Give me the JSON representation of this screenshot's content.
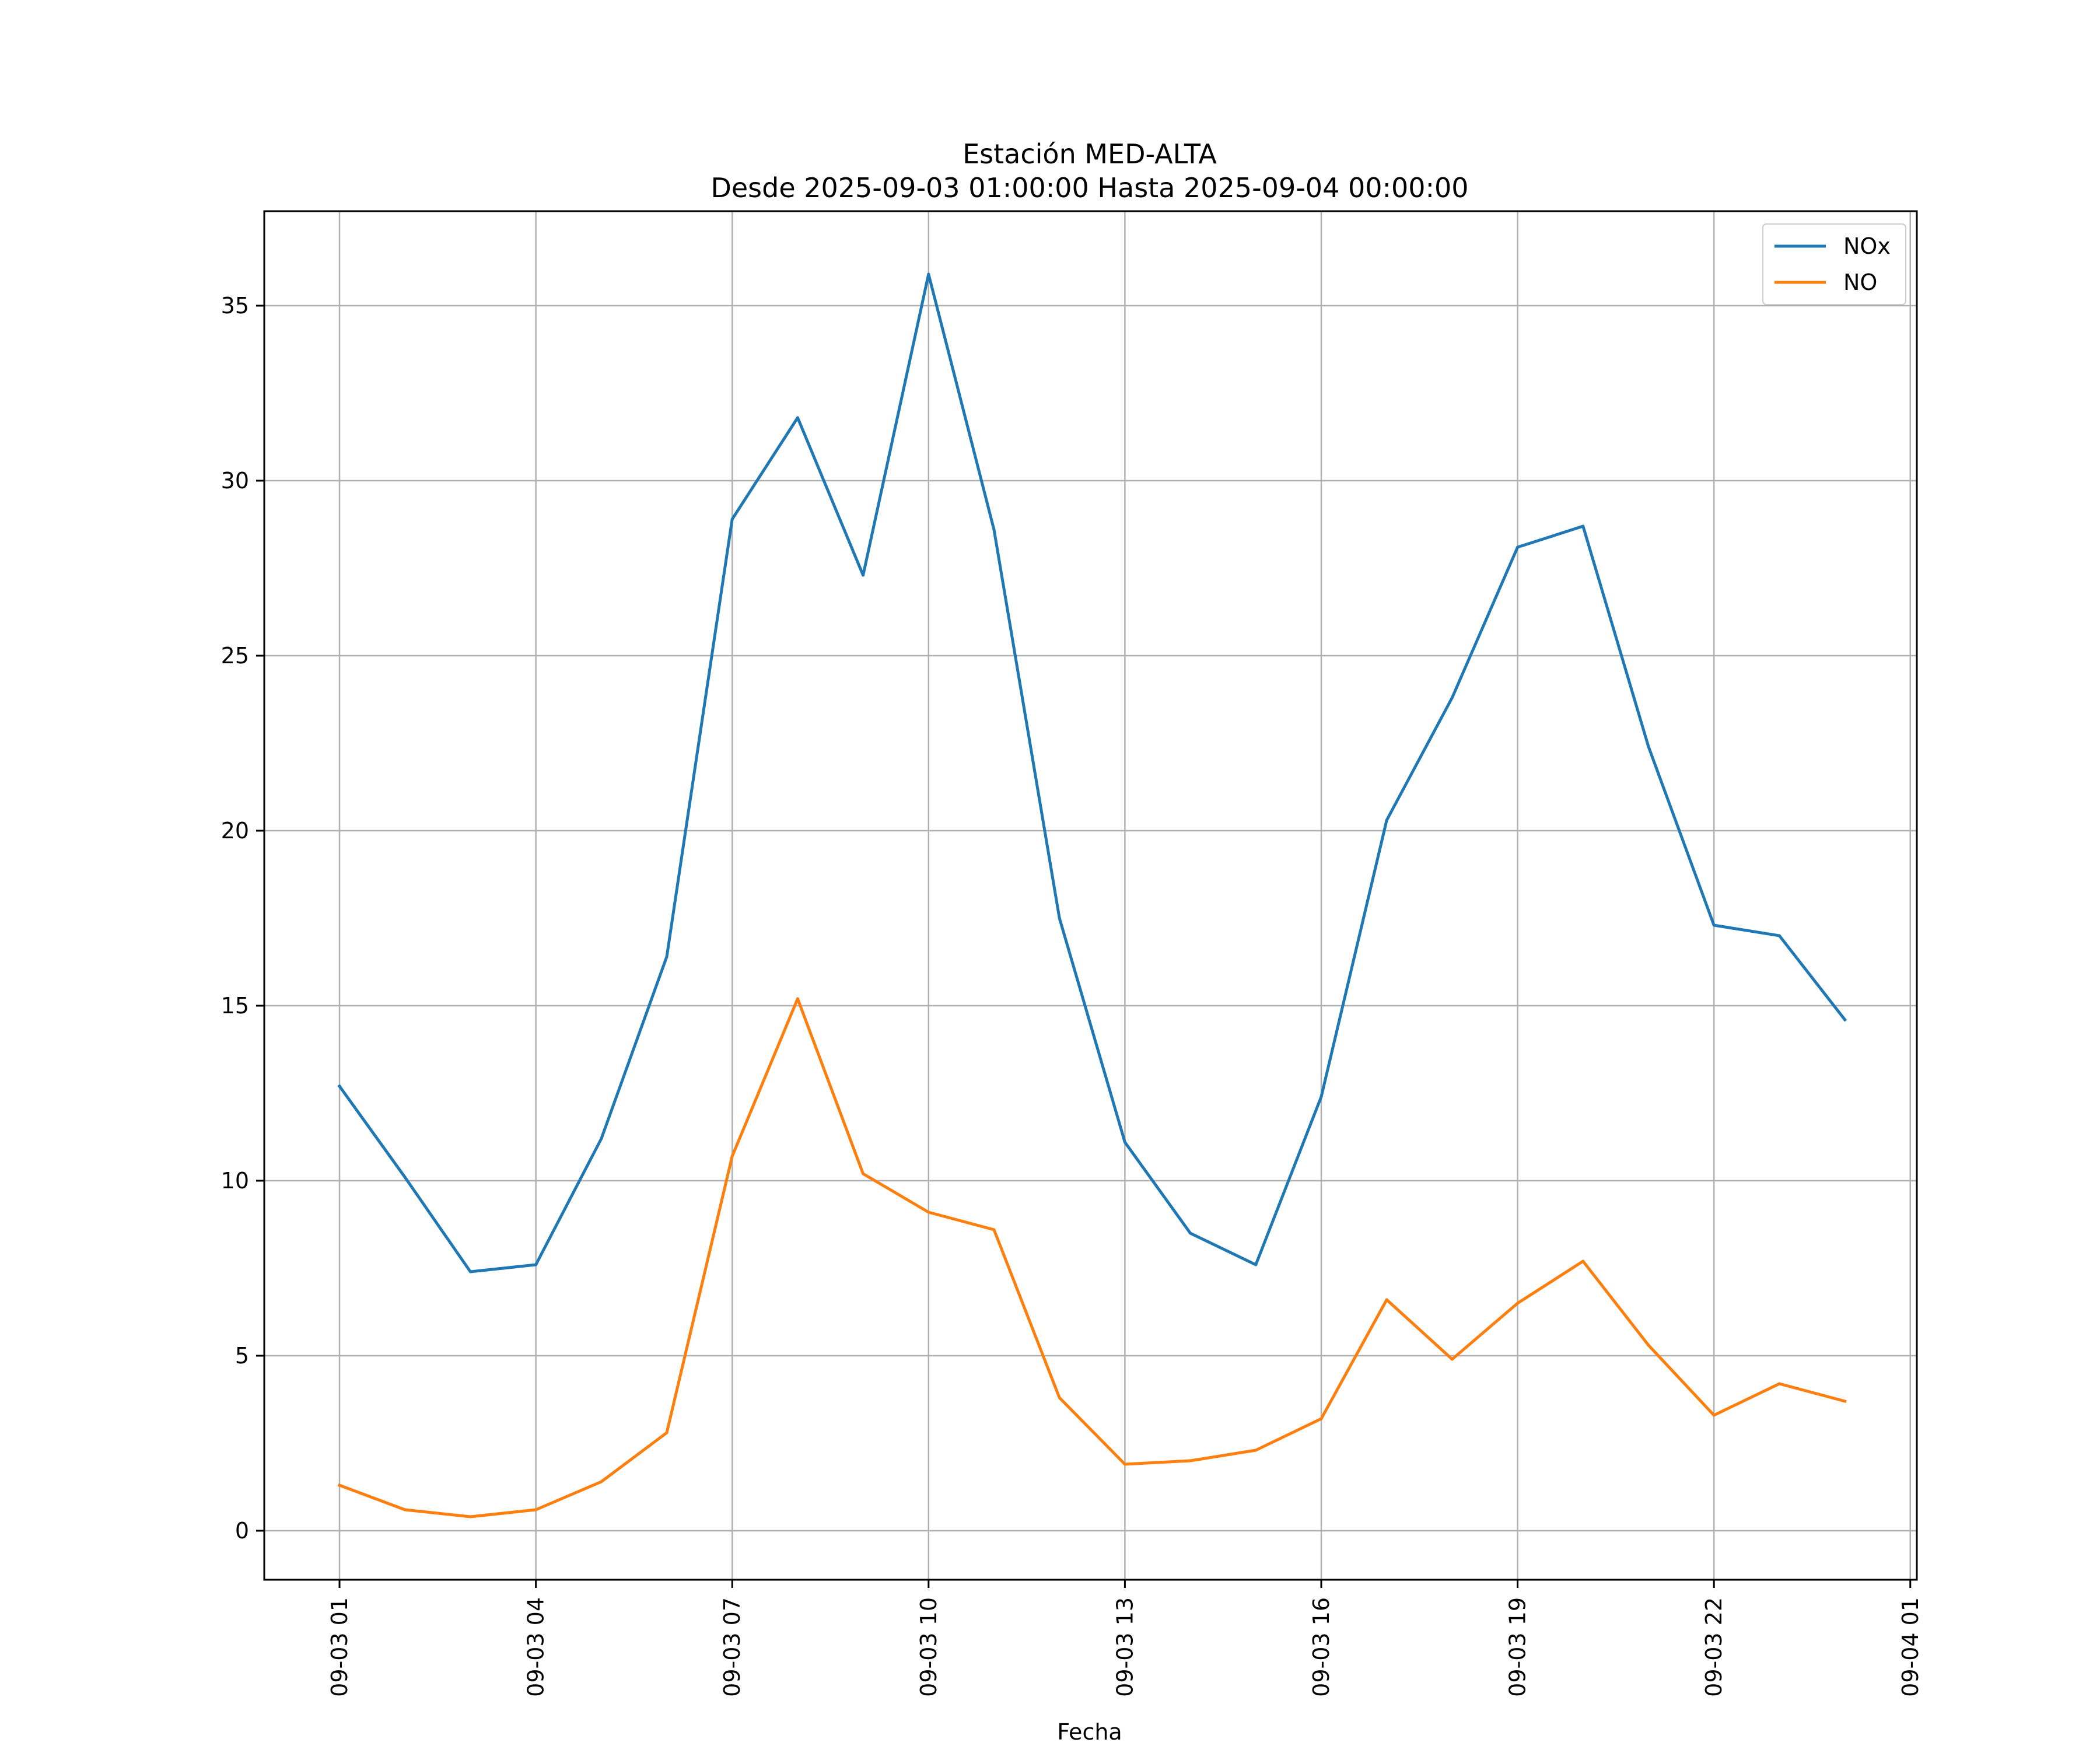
{
  "chart_data": {
    "type": "line",
    "title": "Estación MED-ALTA",
    "subtitle": "Desde 2025-09-03 01:00:00 Hasta 2025-09-04 00:00:00",
    "xlabel": "Fecha",
    "ylabel": "",
    "x_hours": [
      1,
      2,
      3,
      4,
      5,
      6,
      7,
      8,
      9,
      10,
      11,
      12,
      13,
      14,
      15,
      16,
      17,
      18,
      19,
      20,
      21,
      22,
      23,
      24
    ],
    "x_tick_hours": [
      1,
      4,
      7,
      10,
      13,
      16,
      19,
      22,
      25
    ],
    "x_tick_labels": [
      "09-03 01",
      "09-03 04",
      "09-03 07",
      "09-03 10",
      "09-03 13",
      "09-03 16",
      "09-03 19",
      "09-03 22",
      "09-04 01"
    ],
    "xlim": [
      -0.15,
      25.1
    ],
    "y_ticks": [
      0,
      5,
      10,
      15,
      20,
      25,
      30,
      35
    ],
    "y_tick_labels": [
      "0",
      "5",
      "10",
      "15",
      "20",
      "25",
      "30",
      "35"
    ],
    "ylim": [
      -1.4,
      37.7
    ],
    "grid": true,
    "legend_position": "top-right",
    "series": [
      {
        "name": "NOx",
        "color": "#1f77b4",
        "values": [
          12.7,
          10.1,
          7.4,
          7.6,
          11.2,
          16.4,
          28.9,
          31.8,
          27.3,
          35.9,
          28.6,
          17.5,
          11.1,
          8.5,
          7.6,
          12.4,
          20.3,
          23.8,
          28.1,
          28.7,
          22.4,
          17.3,
          17.0,
          14.6
        ]
      },
      {
        "name": "NO",
        "color": "#ff7f0e",
        "values": [
          1.3,
          0.6,
          0.4,
          0.6,
          1.4,
          2.8,
          10.7,
          15.2,
          10.2,
          9.1,
          8.6,
          3.8,
          1.9,
          2.0,
          2.3,
          3.2,
          6.6,
          4.9,
          6.5,
          7.7,
          5.3,
          3.3,
          4.2,
          3.7
        ]
      }
    ]
  }
}
